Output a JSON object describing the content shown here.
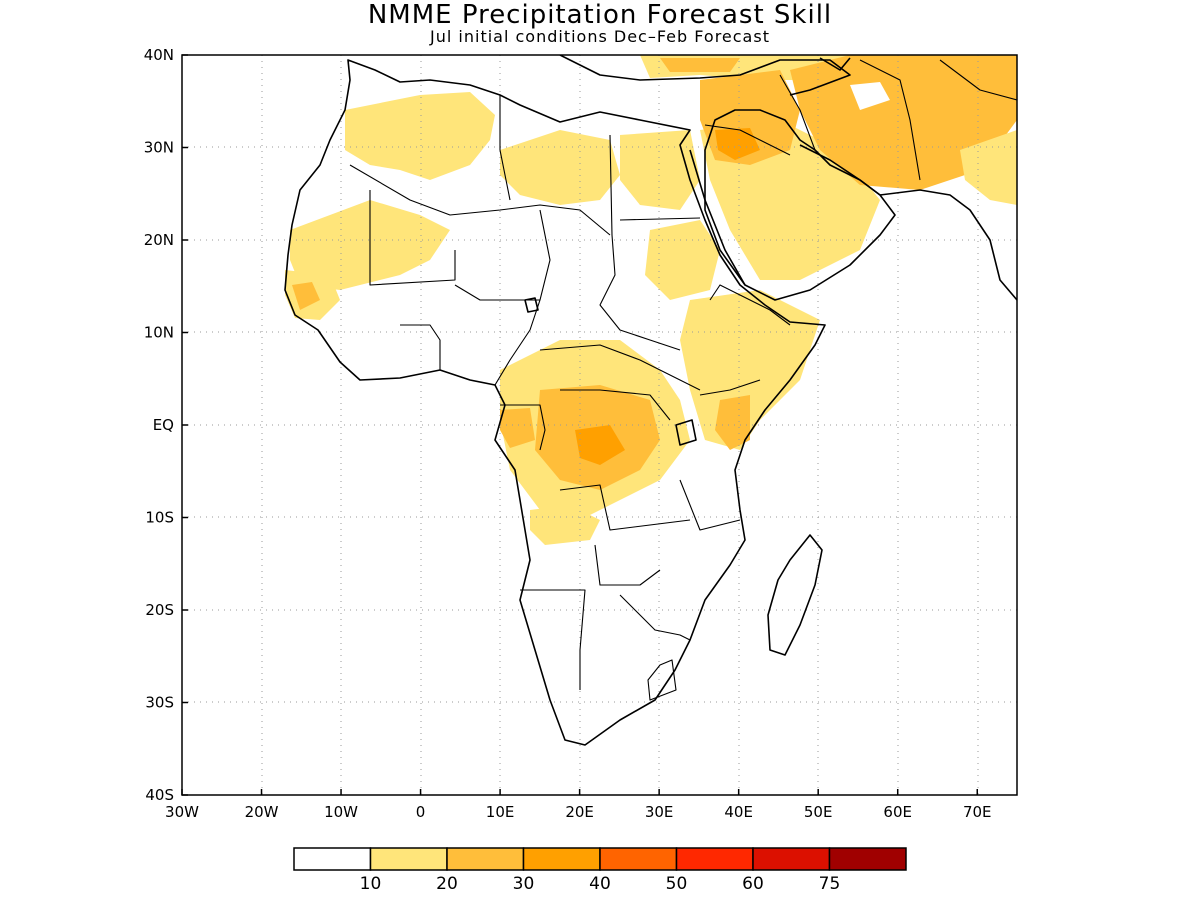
{
  "title": "NMME Precipitation Forecast Skill",
  "subtitle": "Jul initial conditions  Dec–Feb Forecast",
  "map": {
    "lon_range": [
      -30,
      75
    ],
    "lat_range": [
      -40,
      40
    ],
    "lat_ticks": [
      {
        "value": 40,
        "label": "40N"
      },
      {
        "value": 30,
        "label": "30N"
      },
      {
        "value": 20,
        "label": "20N"
      },
      {
        "value": 10,
        "label": "10N"
      },
      {
        "value": 0,
        "label": "EQ"
      },
      {
        "value": -10,
        "label": "10S"
      },
      {
        "value": -20,
        "label": "20S"
      },
      {
        "value": -30,
        "label": "30S"
      },
      {
        "value": -40,
        "label": "40S"
      }
    ],
    "lon_ticks": [
      {
        "value": -30,
        "label": "30W"
      },
      {
        "value": -20,
        "label": "20W"
      },
      {
        "value": -10,
        "label": "10W"
      },
      {
        "value": 0,
        "label": "0"
      },
      {
        "value": 10,
        "label": "10E"
      },
      {
        "value": 20,
        "label": "20E"
      },
      {
        "value": 30,
        "label": "30E"
      },
      {
        "value": 40,
        "label": "40E"
      },
      {
        "value": 50,
        "label": "50E"
      },
      {
        "value": 60,
        "label": "60E"
      },
      {
        "value": 70,
        "label": "70E"
      }
    ],
    "grid": true
  },
  "colorbar": {
    "colors": [
      "#ffffff",
      "#ffe57a",
      "#ffbe3a",
      "#ffa000",
      "#ff6400",
      "#ff2800",
      "#dc1000",
      "#a00000"
    ],
    "labels": [
      "10",
      "20",
      "30",
      "40",
      "50",
      "60",
      "75"
    ]
  }
}
